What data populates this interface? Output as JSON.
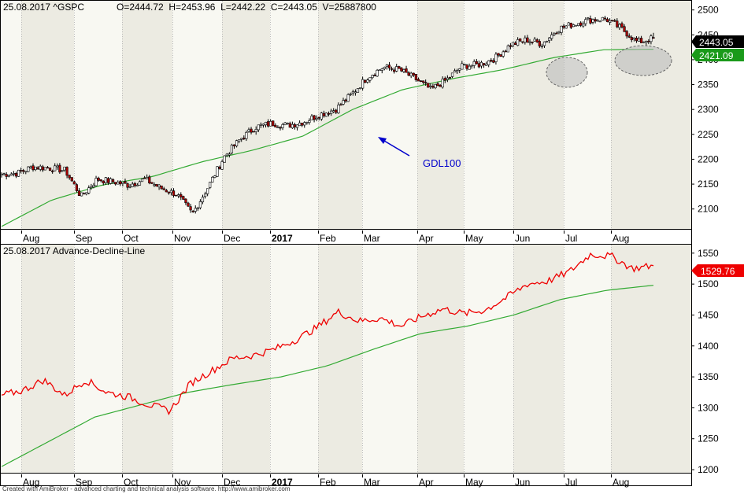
{
  "header": {
    "top_title": "25.08.2017 ^GSPC",
    "top_ohlc": "O=2444.72  H=2453.96  L=2442.22  C=2443.05  V=25887800",
    "bottom_title": "25.08.2017 Advance-Decline-Line"
  },
  "footer": "Created with AmiBroker - advanced charting and technical analysis software. http://www.amibroker.com",
  "colors": {
    "up_candle": "#ffffff",
    "down_candle": "#b00000",
    "candle_outline": "#000000",
    "ma_line": "#33aa33",
    "ad_line": "#ee0000",
    "band_dark": "#ecebe2",
    "band_light": "#f8f8f2",
    "annotation": "#0000cc",
    "close_tag": "#000000",
    "ma_tag": "#1a9a1a",
    "ad_tag": "#ee0000"
  },
  "chart_data": [
    {
      "type": "candlestick",
      "title": "25.08.2017 ^GSPC",
      "months": [
        "Aug",
        "Sep",
        "Oct",
        "Nov",
        "Dec",
        "2017",
        "Feb",
        "Mar",
        "Apr",
        "May",
        "Jun",
        "Jul",
        "Aug"
      ],
      "y_ticks": [
        "2100",
        "2150",
        "2200",
        "2250",
        "2300",
        "2350",
        "2400",
        "2450",
        "2500"
      ],
      "ylim": [
        2060,
        2520
      ],
      "last": {
        "open": 2444.72,
        "high": 2453.96,
        "low": 2442.22,
        "close": 2443.05,
        "volume": 25887800
      },
      "close_label": "2443.05",
      "ma_label": "2421.09",
      "annotation": "GDL100",
      "close_anchors": [
        2170,
        2172,
        2185,
        2182,
        2178,
        2125,
        2160,
        2155,
        2148,
        2160,
        2142,
        2130,
        2090,
        2145,
        2205,
        2240,
        2265,
        2272,
        2268,
        2275,
        2290,
        2300,
        2330,
        2365,
        2385,
        2380,
        2362,
        2340,
        2360,
        2388,
        2390,
        2402,
        2430,
        2440,
        2432,
        2462,
        2472,
        2480,
        2482,
        2462,
        2435,
        2443.05
      ],
      "ma_anchors": [
        2065,
        2118,
        2148,
        2165,
        2195,
        2218,
        2246,
        2300,
        2340,
        2362,
        2380,
        2404,
        2420,
        2421.09
      ]
    },
    {
      "type": "line",
      "title": "25.08.2017 Advance-Decline-Line",
      "months": [
        "Aug",
        "Sep",
        "Oct",
        "Nov",
        "Dec",
        "2017",
        "Feb",
        "Mar",
        "Apr",
        "May",
        "Jun",
        "Jul",
        "Aug"
      ],
      "y_ticks": [
        "1200",
        "1250",
        "1300",
        "1350",
        "1400",
        "1450",
        "1500",
        "1550"
      ],
      "ylim": [
        1195,
        1565
      ],
      "ad_label": "1529.76",
      "ad_anchors": [
        1320,
        1328,
        1345,
        1320,
        1345,
        1325,
        1318,
        1305,
        1295,
        1340,
        1360,
        1380,
        1385,
        1395,
        1410,
        1430,
        1455,
        1440,
        1445,
        1432,
        1448,
        1460,
        1452,
        1458,
        1478,
        1500,
        1505,
        1520,
        1548,
        1545,
        1525,
        1529.76
      ],
      "ma_anchors": [
        1205,
        1245,
        1285,
        1305,
        1325,
        1338,
        1350,
        1368,
        1395,
        1420,
        1432,
        1450,
        1475,
        1490,
        1498
      ]
    }
  ]
}
